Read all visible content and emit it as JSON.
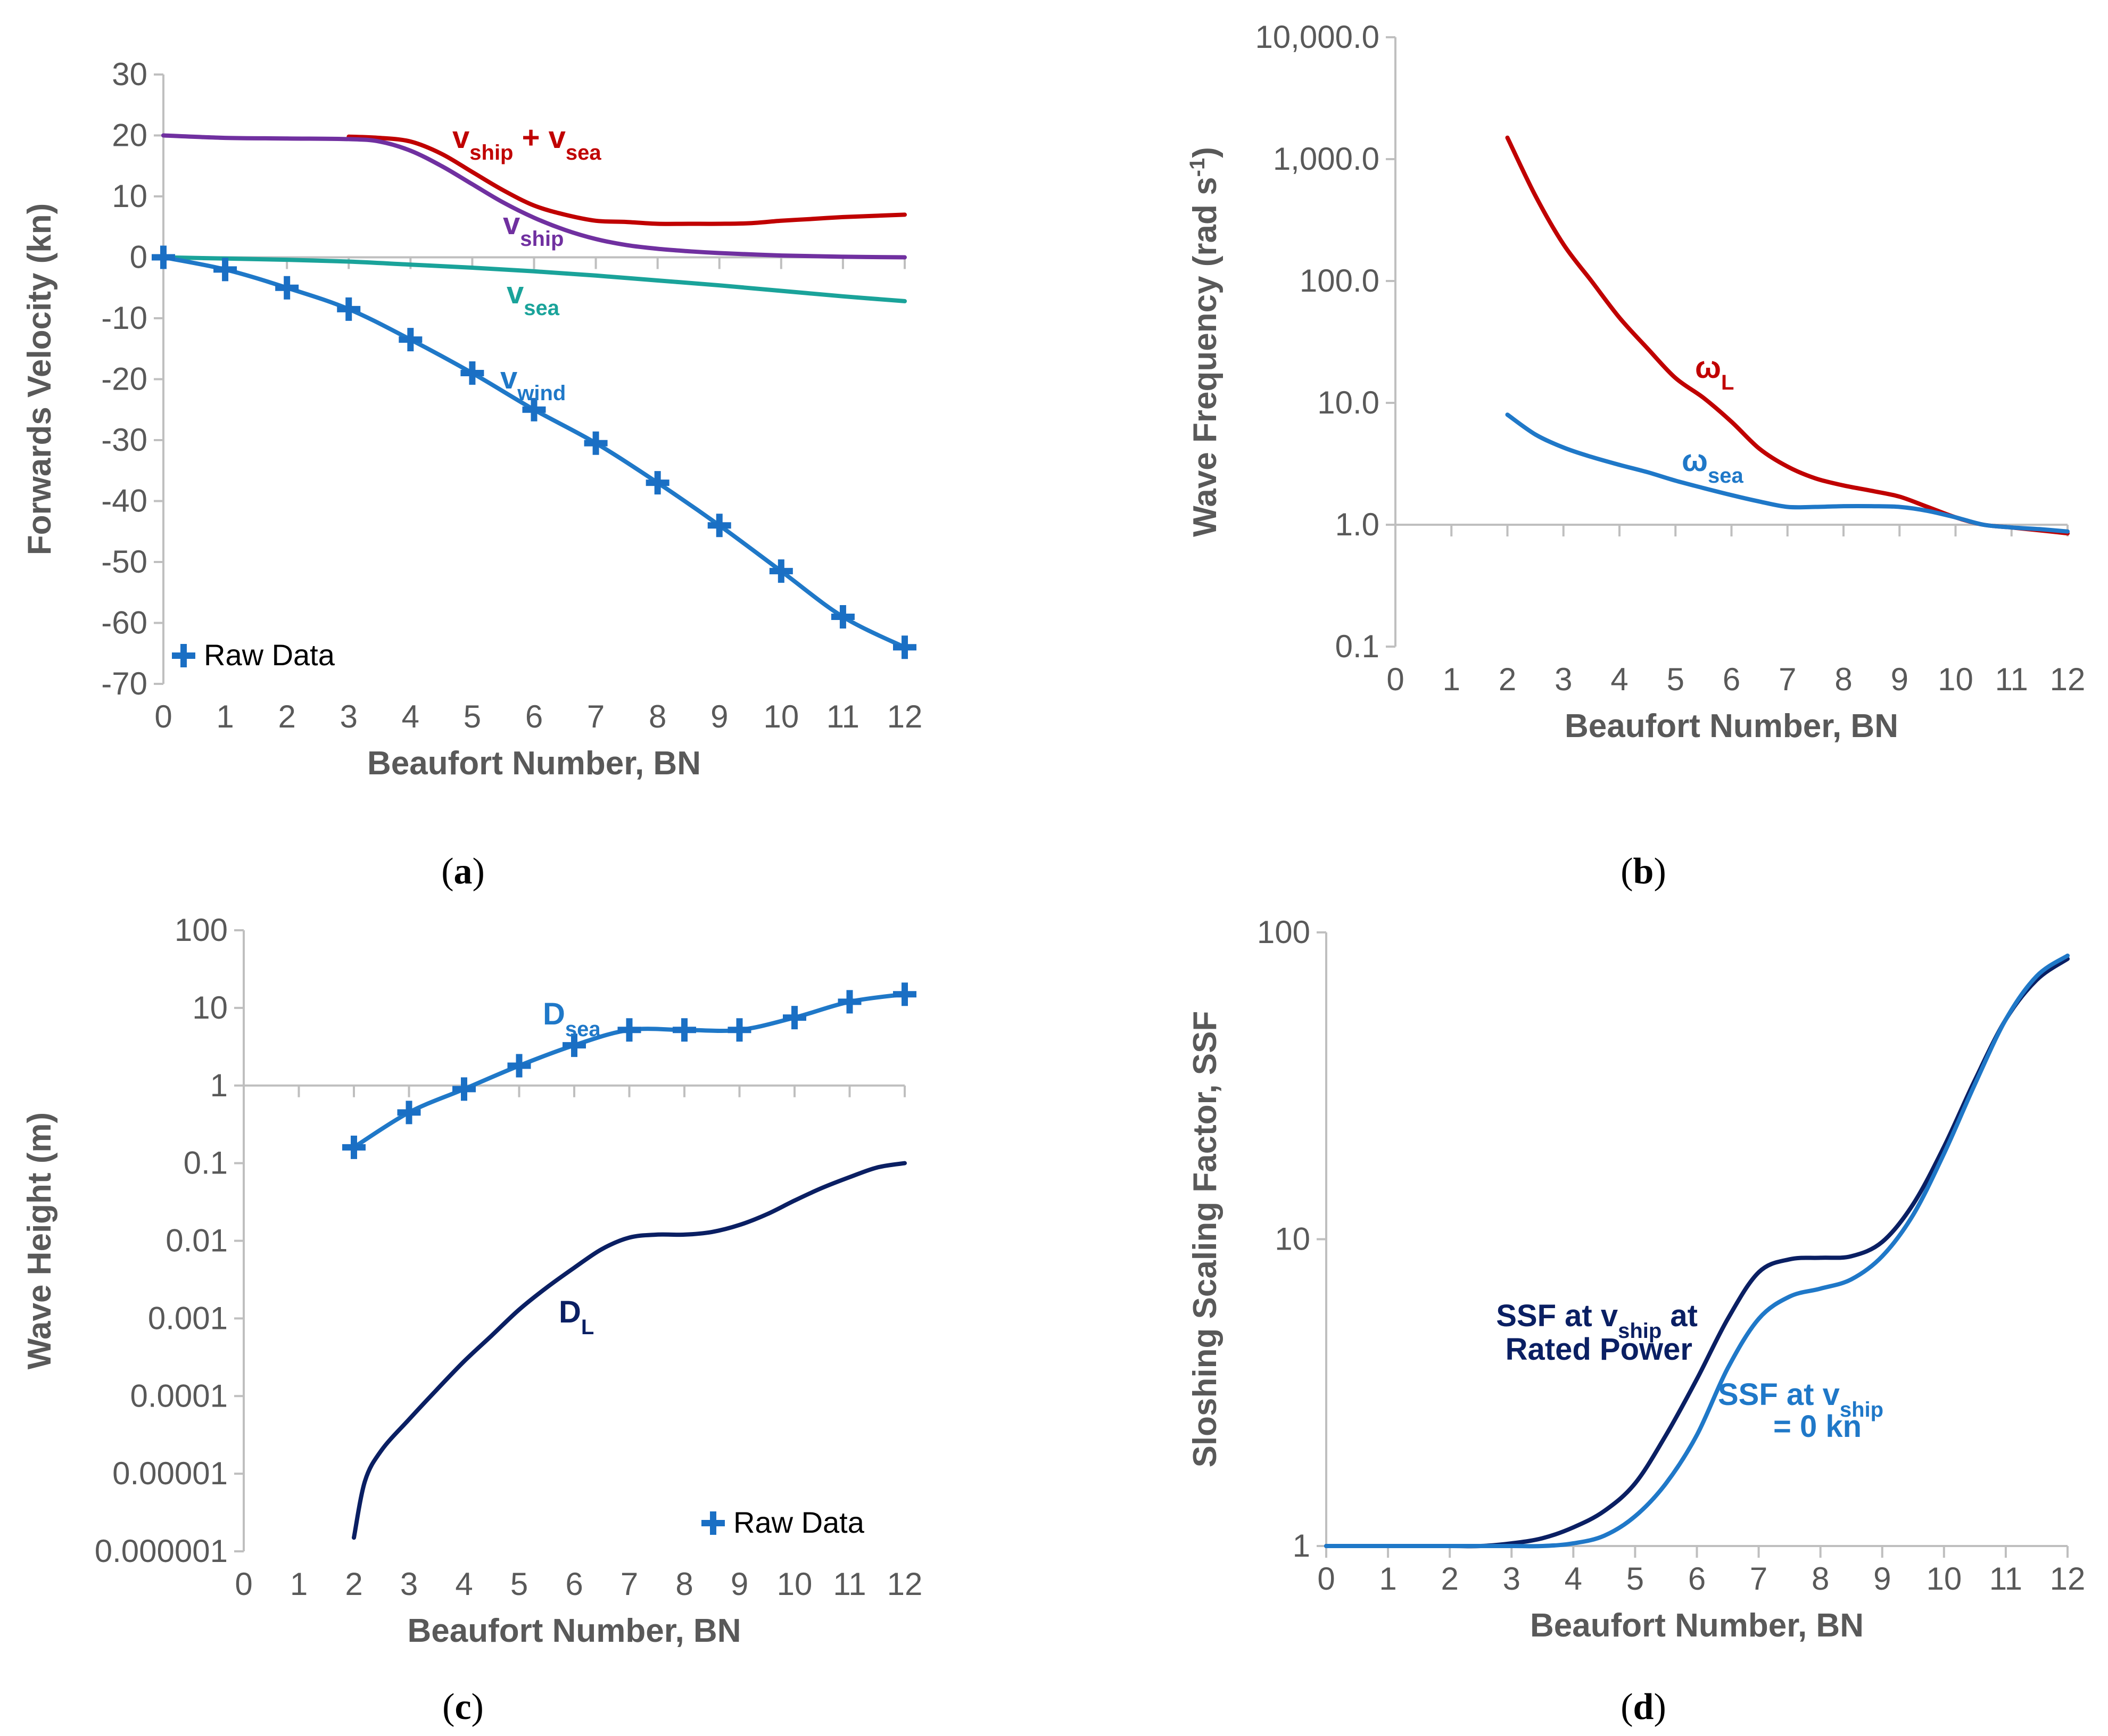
{
  "colors": {
    "axis": "#bfbfbf",
    "text": "#595959",
    "red": "#c00000",
    "purple": "#7030a0",
    "teal": "#1aa39a",
    "blue": "#1f78c8",
    "dark_navy": "#0a1f63",
    "raw_blue": "#1a6fc4"
  },
  "chart_data": [
    {
      "id": "a",
      "type": "line",
      "caption": "a",
      "xlabel": "Beaufort Number, BN",
      "ylabel": "Forwards Velocity (kn)",
      "xlim": [
        0,
        12
      ],
      "ylim": [
        -70,
        30
      ],
      "xticks": [
        "0",
        "1",
        "2",
        "3",
        "4",
        "5",
        "6",
        "7",
        "8",
        "9",
        "10",
        "11",
        "12"
      ],
      "yticks": [
        "30",
        "20",
        "10",
        "0",
        "-10",
        "-20",
        "-30",
        "-40",
        "-50",
        "-60",
        "-70"
      ],
      "yscale": "linear",
      "legend": {
        "label": "Raw Data",
        "position": "bottom-left"
      },
      "series": [
        {
          "name": "vship + vsea",
          "label_main": "v",
          "label_sub": "ship",
          "label_mid": " + v",
          "label_sub2": "sea",
          "color": "red",
          "x": [
            3,
            3.5,
            4,
            4.5,
            5,
            5.5,
            6,
            6.5,
            7,
            7.5,
            8,
            8.5,
            9,
            9.5,
            10,
            10.5,
            11,
            11.5,
            12
          ],
          "y": [
            19.8,
            19.6,
            19,
            17,
            14,
            11,
            8.5,
            7,
            6,
            5.8,
            5.5,
            5.5,
            5.5,
            5.6,
            6,
            6.3,
            6.6,
            6.8,
            7
          ]
        },
        {
          "name": "vship",
          "label_main": "v",
          "label_sub": "ship",
          "color": "purple",
          "x": [
            0,
            1,
            2,
            3,
            3.5,
            4,
            4.5,
            5,
            5.5,
            6,
            6.5,
            7,
            7.5,
            8,
            8.5,
            9,
            10,
            11,
            12
          ],
          "y": [
            20,
            19.6,
            19.5,
            19.4,
            19,
            17.5,
            15,
            12,
            9,
            6.5,
            4.5,
            3,
            2,
            1.4,
            1,
            0.7,
            0.3,
            0.1,
            0
          ]
        },
        {
          "name": "vsea",
          "label_main": "v",
          "label_sub": "sea",
          "color": "teal",
          "x": [
            0,
            1,
            2,
            3,
            4,
            5,
            6,
            7,
            8,
            9,
            10,
            11,
            12
          ],
          "y": [
            0,
            -0.2,
            -0.4,
            -0.7,
            -1.2,
            -1.7,
            -2.3,
            -3,
            -3.8,
            -4.6,
            -5.5,
            -6.4,
            -7.2
          ]
        },
        {
          "name": "vwind",
          "label_main": "v",
          "label_sub": "wind",
          "color": "blue",
          "x": [
            0,
            1,
            2,
            3,
            4,
            5,
            6,
            7,
            8,
            9,
            10,
            11,
            12
          ],
          "y": [
            0,
            -2,
            -5,
            -8.5,
            -13.5,
            -19,
            -25,
            -30.5,
            -37,
            -44,
            -51.5,
            -59,
            -64
          ]
        },
        {
          "name": "Raw Data",
          "marker": "plus",
          "color": "raw_blue",
          "x": [
            0,
            1,
            2,
            3,
            4,
            5,
            6,
            7,
            8,
            9,
            10,
            11,
            12
          ],
          "y": [
            0,
            -2,
            -5,
            -8.5,
            -13.5,
            -19,
            -25,
            -30.5,
            -37,
            -44,
            -51.5,
            -59,
            -64
          ]
        }
      ]
    },
    {
      "id": "b",
      "type": "line",
      "caption": "b",
      "xlabel": "Beaufort Number, BN",
      "ylabel": "Wave Frequency (rad s",
      "ylabel_sup": "-1",
      "ylabel_end": ")",
      "xlim": [
        0,
        12
      ],
      "ylim": [
        0.1,
        10000
      ],
      "yscale": "log",
      "xticks": [
        "0",
        "1",
        "2",
        "3",
        "4",
        "5",
        "6",
        "7",
        "8",
        "9",
        "10",
        "11",
        "12"
      ],
      "yticks": [
        "10,000.0",
        "1,000.0",
        "100.0",
        "10.0",
        "1.0",
        "0.1"
      ],
      "series": [
        {
          "name": "ωL",
          "label_main": "ω",
          "label_sub": "L",
          "color": "red",
          "x": [
            2,
            2.5,
            3,
            3.5,
            4,
            4.5,
            5,
            5.5,
            6,
            6.5,
            7,
            7.5,
            8,
            8.5,
            9,
            9.5,
            10,
            10.5,
            11,
            11.5,
            12
          ],
          "y": [
            1500,
            500,
            200,
            100,
            50,
            28,
            16,
            11,
            7,
            4.2,
            3,
            2.4,
            2.1,
            1.9,
            1.7,
            1.4,
            1.15,
            1.0,
            0.95,
            0.9,
            0.85
          ]
        },
        {
          "name": "ωsea",
          "label_main": "ω",
          "label_sub": "sea",
          "color": "blue",
          "x": [
            2,
            2.5,
            3,
            3.5,
            4,
            4.5,
            5,
            5.5,
            6,
            6.5,
            7,
            7.5,
            8,
            8.5,
            9,
            9.5,
            10,
            10.5,
            11,
            11.5,
            12
          ],
          "y": [
            8,
            5.5,
            4.3,
            3.6,
            3.1,
            2.7,
            2.3,
            2.0,
            1.75,
            1.55,
            1.4,
            1.4,
            1.42,
            1.42,
            1.4,
            1.3,
            1.15,
            1.0,
            0.95,
            0.92,
            0.88
          ]
        }
      ]
    },
    {
      "id": "c",
      "type": "line",
      "caption": "c",
      "xlabel": "Beaufort Number, BN",
      "ylabel": "Wave Height (m)",
      "xlim": [
        0,
        12
      ],
      "ylim": [
        1e-06,
        100
      ],
      "yscale": "log",
      "xaxis_at": 1,
      "xticks": [
        "0",
        "1",
        "2",
        "3",
        "4",
        "5",
        "6",
        "7",
        "8",
        "9",
        "10",
        "11",
        "12"
      ],
      "yticks": [
        "100",
        "10",
        "1",
        "0.1",
        "0.01",
        "0.001",
        "0.0001",
        "0.00001",
        "0.000001"
      ],
      "legend": {
        "label": "Raw Data",
        "position": "bottom-right"
      },
      "series": [
        {
          "name": "Dsea",
          "label_main": "D",
          "label_sub": "sea",
          "color": "blue",
          "x": [
            2,
            3,
            4,
            5,
            6,
            7,
            8,
            9,
            10,
            11,
            12
          ],
          "y": [
            0.16,
            0.45,
            0.9,
            1.8,
            3.3,
            5.2,
            5.2,
            5.2,
            7.5,
            12,
            15
          ]
        },
        {
          "name": "DL",
          "label_main": "D",
          "label_sub": "L",
          "color": "dark_navy",
          "x": [
            2,
            2.2,
            2.5,
            3,
            3.5,
            4,
            4.5,
            5,
            5.5,
            6,
            6.5,
            7,
            7.5,
            8,
            8.5,
            9,
            9.5,
            10,
            10.5,
            11,
            11.5,
            12
          ],
          "y": [
            1.5e-06,
            8e-06,
            2e-05,
            5e-05,
            0.00012,
            0.00028,
            0.0006,
            0.0013,
            0.0025,
            0.0045,
            0.0078,
            0.011,
            0.012,
            0.012,
            0.013,
            0.016,
            0.022,
            0.033,
            0.048,
            0.066,
            0.088,
            0.1
          ]
        },
        {
          "name": "Raw Data",
          "marker": "plus",
          "color": "raw_blue",
          "x": [
            2,
            3,
            4,
            5,
            6,
            7,
            8,
            9,
            10,
            11,
            12
          ],
          "y": [
            0.16,
            0.45,
            0.9,
            1.8,
            3.3,
            5.2,
            5.2,
            5.2,
            7.5,
            12,
            15
          ]
        }
      ]
    },
    {
      "id": "d",
      "type": "line",
      "caption": "d",
      "xlabel": "Beaufort Number, BN",
      "ylabel": "Sloshing Scaling Factor, SSF",
      "xlim": [
        0,
        12
      ],
      "ylim": [
        1,
        100
      ],
      "yscale": "log",
      "xticks": [
        "0",
        "1",
        "2",
        "3",
        "4",
        "5",
        "6",
        "7",
        "8",
        "9",
        "10",
        "11",
        "12"
      ],
      "yticks": [
        "100",
        "10",
        "1"
      ],
      "series": [
        {
          "name": "SSF at vship at Rated Power",
          "color": "dark_navy",
          "label_line1_a": "SSF at v",
          "label_line1_sub": "ship",
          "label_line1_b": " at",
          "label_line2": "Rated Power",
          "x": [
            0,
            1,
            2,
            2.5,
            3,
            3.5,
            4,
            4.5,
            5,
            5.5,
            6,
            6.5,
            7,
            7.5,
            8,
            8.5,
            9,
            9.5,
            10,
            10.5,
            11,
            11.5,
            12
          ],
          "y": [
            1,
            1,
            1,
            1,
            1.02,
            1.06,
            1.15,
            1.3,
            1.6,
            2.3,
            3.5,
            5.5,
            7.8,
            8.6,
            8.7,
            8.8,
            9.8,
            13,
            20,
            33,
            52,
            70,
            82
          ]
        },
        {
          "name": "SSF at vship = 0 kn",
          "color": "blue",
          "label_line1_a": "SSF at v",
          "label_line1_sub": "ship",
          "label_line2": "= 0 kn",
          "x": [
            0,
            1,
            2,
            3,
            3.5,
            4,
            4.5,
            5,
            5.5,
            6,
            6.5,
            7,
            7.5,
            8,
            8.5,
            9,
            9.5,
            10,
            10.5,
            11,
            11.5,
            12
          ],
          "y": [
            1,
            1,
            1,
            1,
            1,
            1.02,
            1.08,
            1.25,
            1.6,
            2.3,
            3.8,
            5.5,
            6.5,
            6.9,
            7.4,
            8.8,
            12,
            19,
            32,
            52,
            72,
            84
          ]
        }
      ]
    }
  ]
}
